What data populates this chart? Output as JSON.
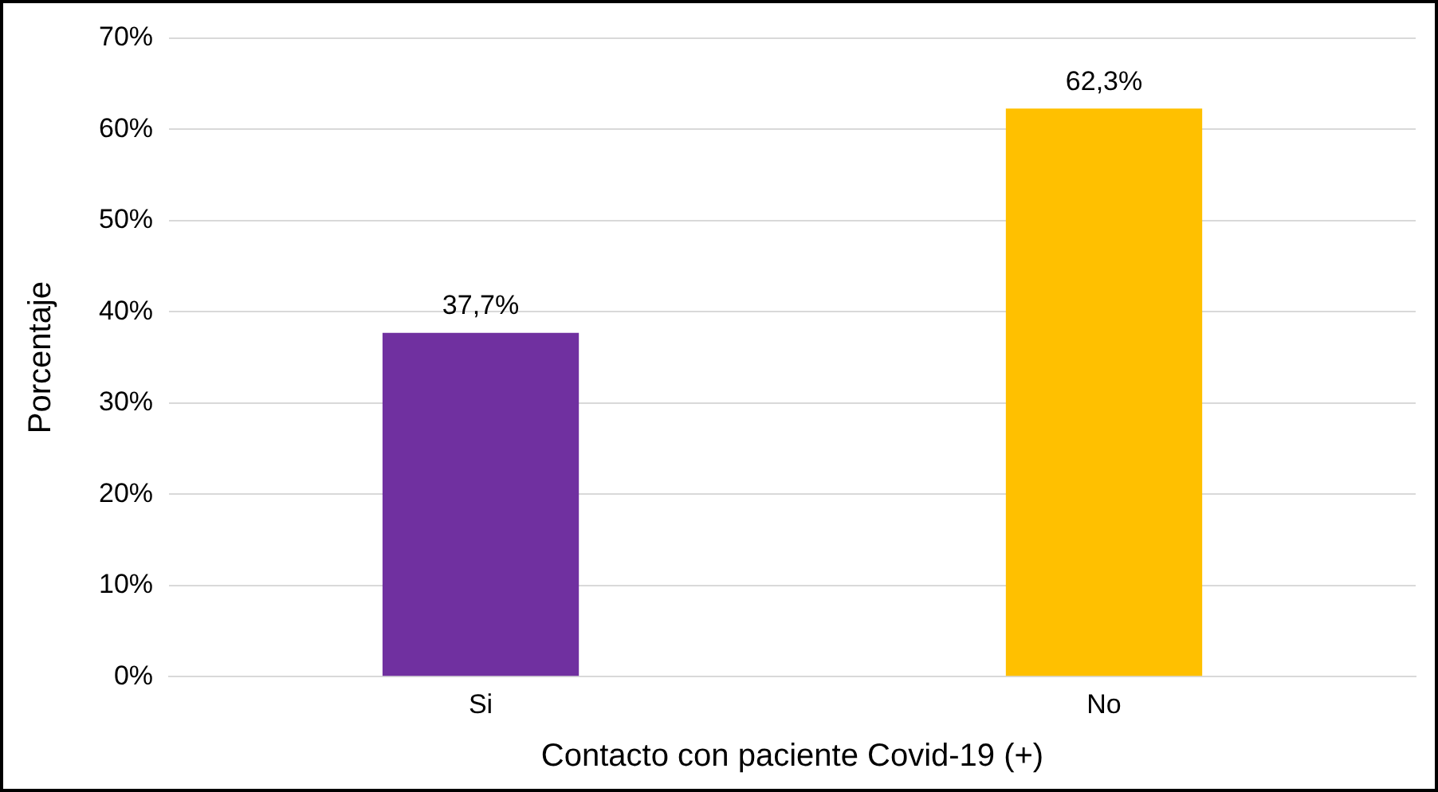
{
  "chart_data": {
    "type": "bar",
    "xlabel": "Contacto con paciente Covid-19 (+)",
    "ylabel": "Porcentaje",
    "categories": [
      "Si",
      "No"
    ],
    "values": [
      37.7,
      62.3
    ],
    "colors": [
      "#7030a0",
      "#ffc000"
    ],
    "value_labels": [
      "37,7%",
      "62,3%"
    ],
    "ylim": [
      0,
      70
    ],
    "yticks": [
      {
        "value": 0,
        "label": "0%"
      },
      {
        "value": 10,
        "label": "10%"
      },
      {
        "value": 20,
        "label": "20%"
      },
      {
        "value": 30,
        "label": "30%"
      },
      {
        "value": 40,
        "label": "40%"
      },
      {
        "value": 50,
        "label": "50%"
      },
      {
        "value": 60,
        "label": "60%"
      },
      {
        "value": 70,
        "label": "70%"
      }
    ],
    "grid": "y",
    "legend": false
  }
}
